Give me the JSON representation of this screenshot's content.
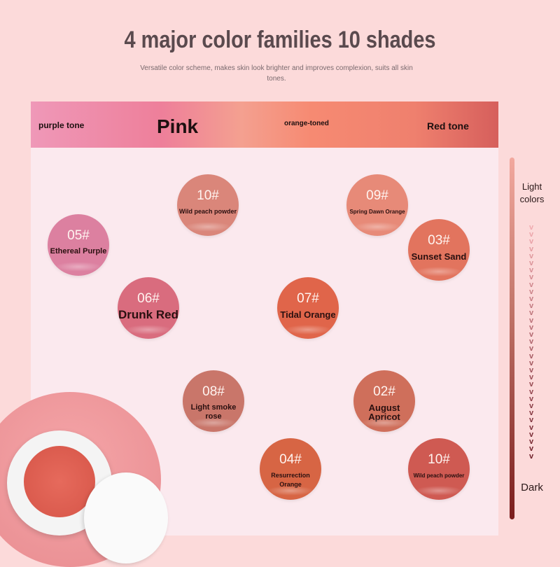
{
  "header": {
    "title": "4 major color families 10 shades",
    "subtitle": "Versatile color scheme, makes skin look brighter and improves complexion, suits all skin tones."
  },
  "band": {
    "purple": "purple tone",
    "pink": "Pink",
    "orange": "orange-toned",
    "red": "Red tone"
  },
  "swatches": [
    {
      "num": "10#",
      "name": "Wild peach powder",
      "color": "#da867a"
    },
    {
      "num": "09#",
      "name": "Spring Dawn Orange",
      "color": "#e78a78"
    },
    {
      "num": "05#",
      "name": "Ethereal Purple",
      "color": "#dc80a0"
    },
    {
      "num": "03#",
      "name": "Sunset Sand",
      "color": "#e2745e"
    },
    {
      "num": "06#",
      "name": "Drunk Red",
      "color": "#d96c7e"
    },
    {
      "num": "07#",
      "name": "Tidal Orange",
      "color": "#e0654a"
    },
    {
      "num": "08#",
      "name": "Light smoke rose",
      "color": "#c9766a"
    },
    {
      "num": "02#",
      "name": "August Apricot",
      "color": "#cf6f5b"
    },
    {
      "num": "04#",
      "name": "Resurrection Orange",
      "color": "#d76544"
    },
    {
      "num": "10#",
      "name": "Wild peach powder",
      "color": "#cf5a52"
    }
  ],
  "scale": {
    "light": "Light colors",
    "dark": "Dark"
  }
}
